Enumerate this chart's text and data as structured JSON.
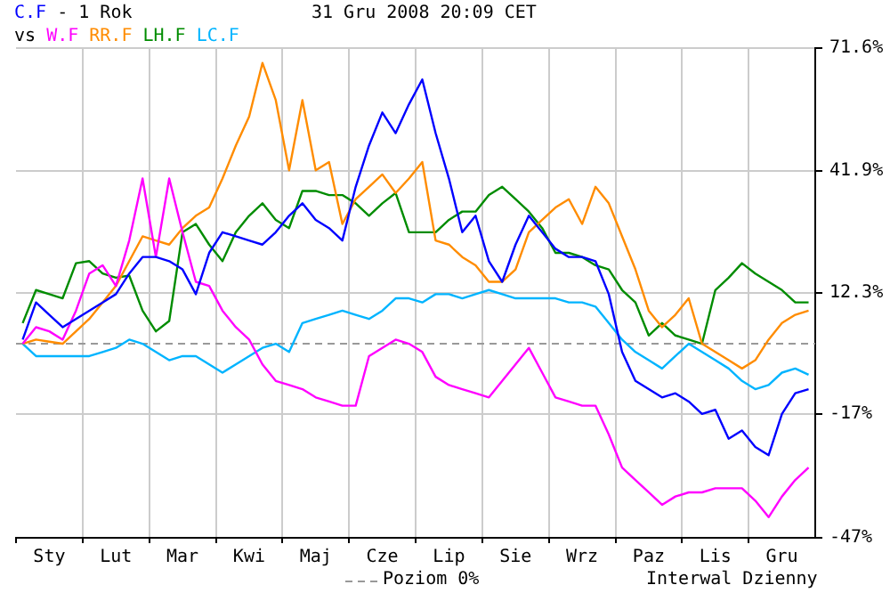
{
  "chart_data": {
    "type": "line",
    "title": "- 1 Rok",
    "annotations": [
      "vs",
      "31 Gru 2008 20:09 CET",
      "Interwal Dzienny"
    ],
    "legend": "bottom",
    "grid": true,
    "marker": "none",
    "line_style": "solid",
    "categories": [
      null,
      null,
      "Sty",
      null,
      null,
      null,
      null,
      "Lut",
      null,
      null,
      null,
      null,
      "Mar",
      null,
      null,
      null,
      null,
      "Kwi",
      null,
      null,
      null,
      null,
      "Maj",
      null,
      null,
      null,
      null,
      "Cze",
      null,
      null,
      null,
      null,
      "Lip",
      null,
      null,
      null,
      null,
      "Sie",
      null,
      null,
      null,
      null,
      "Wrz",
      null,
      null,
      null,
      null,
      "Paz",
      null,
      null,
      null,
      null,
      "Lis",
      null,
      null,
      null,
      null,
      "Gru",
      null,
      null
    ],
    "ylim": [
      -47,
      71.6
    ],
    "yticks": [
      {
        "value": -47,
        "label": "-47%"
      },
      {
        "value": -17,
        "label": "-17%"
      },
      {
        "value": 12.3,
        "label": "12.3%"
      },
      {
        "value": 41.9,
        "label": "41.9%"
      },
      {
        "value": 71.6,
        "label": "71.6%"
      }
    ],
    "ref_lines": [
      {
        "axis": "y",
        "value": 0,
        "label": "Poziom 0%",
        "color": "#999999",
        "line_style": "dashed"
      }
    ],
    "series": [
      {
        "name": "C.F",
        "color": "#0000ff",
        "values": [
          1,
          10,
          7,
          4,
          6,
          8,
          10,
          12,
          17,
          21,
          21,
          20,
          18,
          12,
          22,
          27,
          26,
          25,
          24,
          27,
          31,
          34,
          30,
          28,
          25,
          38,
          48,
          56,
          51,
          58,
          64,
          51,
          40,
          27,
          31,
          20,
          15,
          24,
          31,
          27,
          23,
          21,
          21,
          20,
          12,
          -2,
          -9,
          -11,
          -13,
          -12,
          -14,
          -17,
          -16,
          -23,
          -21,
          -25,
          -27,
          -17,
          -12,
          -11
        ]
      },
      {
        "name": "W.F",
        "color": "#ff00ff",
        "values": [
          0,
          4,
          3,
          1,
          8,
          17,
          19,
          14,
          25,
          40,
          21,
          40,
          27,
          15,
          14,
          8,
          4,
          1,
          -5,
          -9,
          -10,
          -11,
          -13,
          -14,
          -15,
          -15,
          -3,
          -1,
          1,
          0,
          -2,
          -8,
          -10,
          -11,
          -12,
          -13,
          -9,
          -5,
          -1,
          -7,
          -13,
          -14,
          -15,
          -15,
          -22,
          -30,
          -33,
          -36,
          -39,
          -37,
          -36,
          -36,
          -35,
          -35,
          -35,
          -38,
          -42,
          -37,
          -33,
          -30
        ]
      },
      {
        "name": "RR.F",
        "color": "#ff8c00",
        "values": [
          0,
          1,
          0.5,
          0,
          3,
          6,
          10,
          14,
          20,
          26,
          25,
          24,
          28,
          31,
          33,
          40,
          48,
          55,
          68,
          59,
          42,
          59,
          42,
          44,
          29,
          35,
          38,
          41,
          36.5,
          40,
          44,
          25,
          24,
          21,
          19,
          15,
          15,
          18,
          27,
          30,
          33,
          35,
          29,
          38,
          34,
          26,
          18,
          8,
          4,
          7,
          11,
          0,
          -2,
          -4,
          -6,
          -4,
          1,
          5,
          7,
          8
        ]
      },
      {
        "name": "LH.F",
        "color": "#008c00",
        "values": [
          5,
          13,
          12,
          11,
          19.5,
          20,
          17,
          16,
          16.5,
          8,
          3,
          5.5,
          27,
          29,
          24,
          20,
          27,
          31,
          34,
          30,
          28,
          37,
          37,
          36,
          36,
          34,
          31,
          34,
          36.5,
          27,
          27,
          27,
          30,
          32,
          32,
          36,
          38,
          35,
          32,
          28,
          22,
          22,
          21,
          19,
          18,
          13,
          10,
          2,
          5,
          2,
          1,
          0,
          13,
          16,
          19.5,
          17,
          15,
          13,
          10,
          10
        ]
      },
      {
        "name": "LC.F",
        "color": "#00b4ff",
        "values": [
          0,
          -3,
          -3,
          -3,
          -3,
          -3,
          -2,
          -1,
          1,
          0,
          -2,
          -4,
          -3,
          -3,
          -5,
          -7,
          -5,
          -3,
          -1,
          0,
          -2,
          5,
          6,
          7,
          8,
          7,
          6,
          8,
          11,
          11,
          10,
          12,
          12,
          11,
          12,
          13,
          12,
          11,
          11,
          11,
          11,
          10,
          10,
          9,
          5,
          1,
          -2,
          -4,
          -6,
          -3,
          0,
          -2,
          -4,
          -6,
          -9,
          -11,
          -10,
          -7,
          -6,
          -7.5
        ]
      }
    ]
  }
}
